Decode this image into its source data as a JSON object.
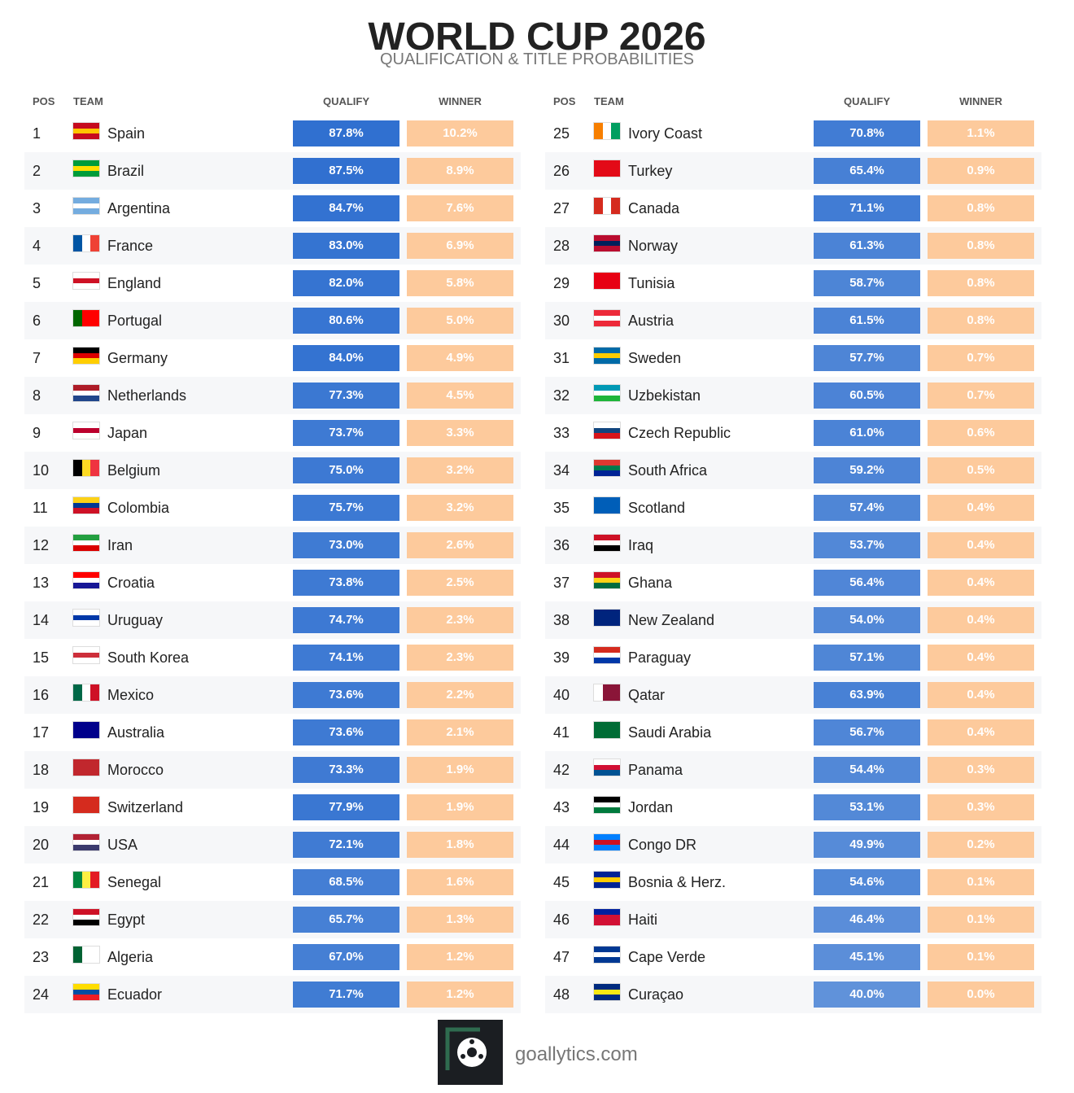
{
  "header": {
    "title": "WORLD CUP 2026",
    "subtitle": "QUALIFICATION & TITLE PROBABILITIES"
  },
  "tables": [
    {
      "headers": [
        "POS",
        "TEAM",
        "QUALIFY",
        "WINNER"
      ],
      "rows": [
        [
          1,
          "Spain",
          "87.8%",
          "10.2%",
          [
            "h",
            "#c60b1e",
            "#ffc400",
            "#c60b1e"
          ]
        ],
        [
          2,
          "Brazil",
          "87.5%",
          "8.9%",
          [
            "h",
            "#009c3b",
            "#ffdf00",
            "#009c3b"
          ]
        ],
        [
          3,
          "Argentina",
          "84.7%",
          "7.6%",
          [
            "h",
            "#74acdf",
            "#ffffff",
            "#74acdf"
          ]
        ],
        [
          4,
          "France",
          "83.0%",
          "6.9%",
          [
            "v",
            "#0055a4",
            "#ffffff",
            "#ef4135"
          ]
        ],
        [
          5,
          "England",
          "82.0%",
          "5.8%",
          [
            "h",
            "#ffffff",
            "#ce1124",
            "#ffffff"
          ]
        ],
        [
          6,
          "Portugal",
          "80.6%",
          "5.0%",
          [
            "v",
            "#006600",
            "#ff0000",
            "#ff0000"
          ]
        ],
        [
          7,
          "Germany",
          "84.0%",
          "4.9%",
          [
            "h",
            "#000000",
            "#dd0000",
            "#ffce00"
          ]
        ],
        [
          8,
          "Netherlands",
          "77.3%",
          "4.5%",
          [
            "h",
            "#ae1c28",
            "#ffffff",
            "#21468b"
          ]
        ],
        [
          9,
          "Japan",
          "73.7%",
          "3.3%",
          [
            "h",
            "#ffffff",
            "#bc002d",
            "#ffffff"
          ]
        ],
        [
          10,
          "Belgium",
          "75.0%",
          "3.2%",
          [
            "v",
            "#000000",
            "#fdda24",
            "#ef3340"
          ]
        ],
        [
          11,
          "Colombia",
          "75.7%",
          "3.2%",
          [
            "h",
            "#fcd116",
            "#003893",
            "#ce1126"
          ]
        ],
        [
          12,
          "Iran",
          "73.0%",
          "2.6%",
          [
            "h",
            "#239f40",
            "#ffffff",
            "#da0000"
          ]
        ],
        [
          13,
          "Croatia",
          "73.8%",
          "2.5%",
          [
            "h",
            "#ff0000",
            "#ffffff",
            "#171796"
          ]
        ],
        [
          14,
          "Uruguay",
          "74.7%",
          "2.3%",
          [
            "h",
            "#ffffff",
            "#0038a8",
            "#ffffff"
          ]
        ],
        [
          15,
          "South Korea",
          "74.1%",
          "2.3%",
          [
            "h",
            "#ffffff",
            "#cd2e3a",
            "#ffffff"
          ]
        ],
        [
          16,
          "Mexico",
          "73.6%",
          "2.2%",
          [
            "v",
            "#006847",
            "#ffffff",
            "#ce1126"
          ]
        ],
        [
          17,
          "Australia",
          "73.6%",
          "2.1%",
          [
            "h",
            "#00008b",
            "#00008b",
            "#00008b"
          ]
        ],
        [
          18,
          "Morocco",
          "73.3%",
          "1.9%",
          [
            "h",
            "#c1272d",
            "#c1272d",
            "#c1272d"
          ]
        ],
        [
          19,
          "Switzerland",
          "77.9%",
          "1.9%",
          [
            "h",
            "#d52b1e",
            "#d52b1e",
            "#d52b1e"
          ]
        ],
        [
          20,
          "USA",
          "72.1%",
          "1.8%",
          [
            "h",
            "#b22234",
            "#ffffff",
            "#3c3b6e"
          ]
        ],
        [
          21,
          "Senegal",
          "68.5%",
          "1.6%",
          [
            "v",
            "#00853f",
            "#fdef42",
            "#e31b23"
          ]
        ],
        [
          22,
          "Egypt",
          "65.7%",
          "1.3%",
          [
            "h",
            "#ce1126",
            "#ffffff",
            "#000000"
          ]
        ],
        [
          23,
          "Algeria",
          "67.0%",
          "1.2%",
          [
            "v",
            "#006233",
            "#ffffff",
            "#ffffff"
          ]
        ],
        [
          24,
          "Ecuador",
          "71.7%",
          "1.2%",
          [
            "h",
            "#ffdd00",
            "#034ea2",
            "#ed1c24"
          ]
        ]
      ]
    },
    {
      "headers": [
        "POS",
        "TEAM",
        "QUALIFY",
        "WINNER"
      ],
      "rows": [
        [
          25,
          "Ivory Coast",
          "70.8%",
          "1.1%",
          [
            "v",
            "#f77f00",
            "#ffffff",
            "#009e60"
          ]
        ],
        [
          26,
          "Turkey",
          "65.4%",
          "0.9%",
          [
            "h",
            "#e30a17",
            "#e30a17",
            "#e30a17"
          ]
        ],
        [
          27,
          "Canada",
          "71.1%",
          "0.8%",
          [
            "v",
            "#d52b1e",
            "#ffffff",
            "#d52b1e"
          ]
        ],
        [
          28,
          "Norway",
          "61.3%",
          "0.8%",
          [
            "h",
            "#ba0c2f",
            "#00205b",
            "#ba0c2f"
          ]
        ],
        [
          29,
          "Tunisia",
          "58.7%",
          "0.8%",
          [
            "h",
            "#e70013",
            "#e70013",
            "#e70013"
          ]
        ],
        [
          30,
          "Austria",
          "61.5%",
          "0.8%",
          [
            "h",
            "#ed2939",
            "#ffffff",
            "#ed2939"
          ]
        ],
        [
          31,
          "Sweden",
          "57.7%",
          "0.7%",
          [
            "h",
            "#006aa7",
            "#fecc00",
            "#006aa7"
          ]
        ],
        [
          32,
          "Uzbekistan",
          "60.5%",
          "0.7%",
          [
            "h",
            "#0099b5",
            "#ffffff",
            "#1eb53a"
          ]
        ],
        [
          33,
          "Czech Republic",
          "61.0%",
          "0.6%",
          [
            "h",
            "#ffffff",
            "#11457e",
            "#d7141a"
          ]
        ],
        [
          34,
          "South Africa",
          "59.2%",
          "0.5%",
          [
            "h",
            "#de3831",
            "#007a4d",
            "#002395"
          ]
        ],
        [
          35,
          "Scotland",
          "57.4%",
          "0.4%",
          [
            "h",
            "#005eb8",
            "#005eb8",
            "#005eb8"
          ]
        ],
        [
          36,
          "Iraq",
          "53.7%",
          "0.4%",
          [
            "h",
            "#ce1126",
            "#ffffff",
            "#000000"
          ]
        ],
        [
          37,
          "Ghana",
          "56.4%",
          "0.4%",
          [
            "h",
            "#ce1126",
            "#fcd116",
            "#006b3f"
          ]
        ],
        [
          38,
          "New Zealand",
          "54.0%",
          "0.4%",
          [
            "h",
            "#00247d",
            "#00247d",
            "#00247d"
          ]
        ],
        [
          39,
          "Paraguay",
          "57.1%",
          "0.4%",
          [
            "h",
            "#d52b1e",
            "#ffffff",
            "#0038a8"
          ]
        ],
        [
          40,
          "Qatar",
          "63.9%",
          "0.4%",
          [
            "v",
            "#ffffff",
            "#8a1538",
            "#8a1538"
          ]
        ],
        [
          41,
          "Saudi Arabia",
          "56.7%",
          "0.4%",
          [
            "h",
            "#006c35",
            "#006c35",
            "#006c35"
          ]
        ],
        [
          42,
          "Panama",
          "54.4%",
          "0.3%",
          [
            "h",
            "#ffffff",
            "#d21034",
            "#005293"
          ]
        ],
        [
          43,
          "Jordan",
          "53.1%",
          "0.3%",
          [
            "h",
            "#000000",
            "#ffffff",
            "#007a3d"
          ]
        ],
        [
          44,
          "Congo DR",
          "49.9%",
          "0.2%",
          [
            "h",
            "#007fff",
            "#ce1021",
            "#007fff"
          ]
        ],
        [
          45,
          "Bosnia & Herz.",
          "54.6%",
          "0.1%",
          [
            "h",
            "#002395",
            "#fecb00",
            "#002395"
          ]
        ],
        [
          46,
          "Haiti",
          "46.4%",
          "0.1%",
          [
            "h",
            "#00209f",
            "#d21034",
            "#d21034"
          ]
        ],
        [
          47,
          "Cape Verde",
          "45.1%",
          "0.1%",
          [
            "h",
            "#003893",
            "#ffffff",
            "#003893"
          ]
        ],
        [
          48,
          "Curaçao",
          "40.0%",
          "0.0%",
          [
            "h",
            "#002b7f",
            "#f9e814",
            "#002b7f"
          ]
        ]
      ]
    }
  ],
  "footer": {
    "site": "goallytics.com"
  }
}
